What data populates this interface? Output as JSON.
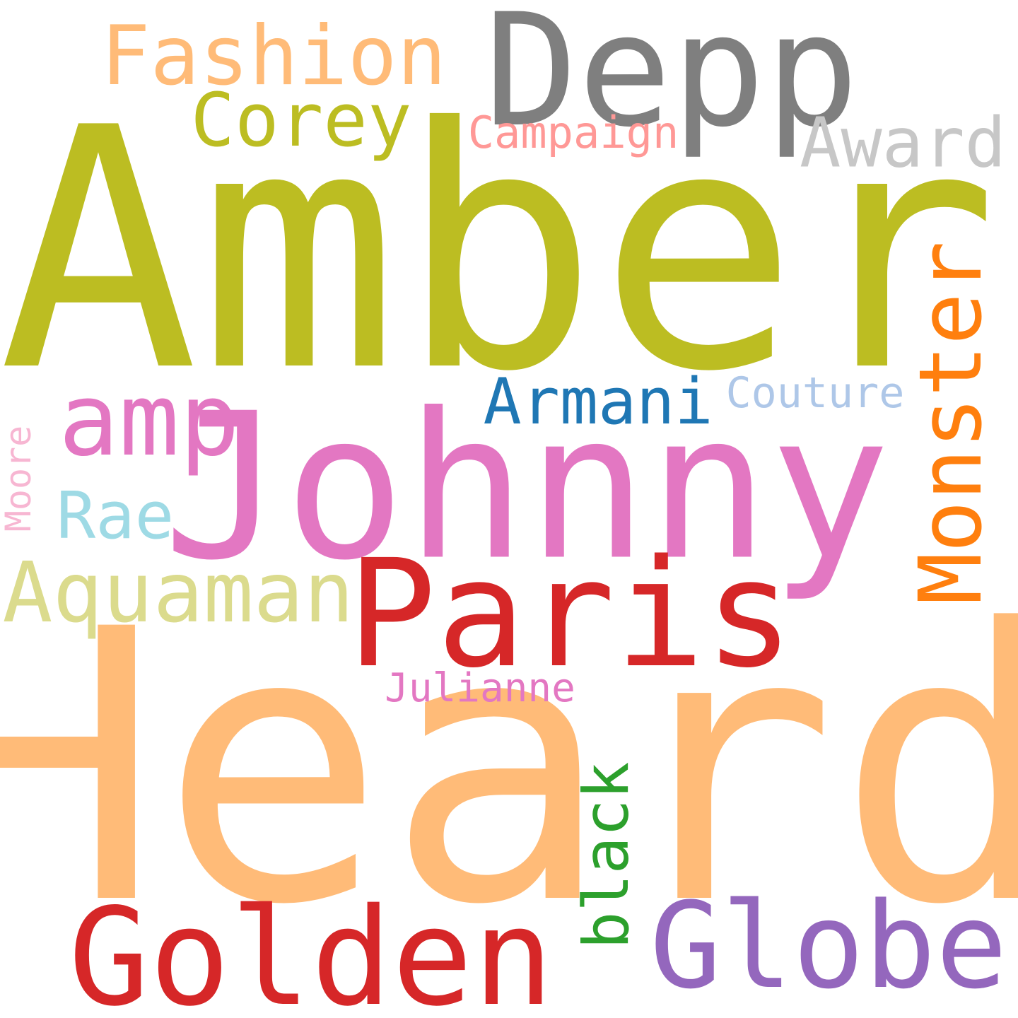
{
  "cloud": {
    "words": [
      {
        "text": "Amber",
        "color": "#bcbd22"
      },
      {
        "text": "Heard",
        "color": "#ffbb78"
      },
      {
        "text": "Johnny",
        "color": "#e377c2"
      },
      {
        "text": "Depp",
        "color": "#7f7f7f"
      },
      {
        "text": "Paris",
        "color": "#d62728"
      },
      {
        "text": "Golden",
        "color": "#d62728"
      },
      {
        "text": "Globe",
        "color": "#9467bd"
      },
      {
        "text": "Monster",
        "color": "#ff7f0e"
      },
      {
        "text": "Fashion",
        "color": "#ffbb78"
      },
      {
        "text": "amp",
        "color": "#e377c2"
      },
      {
        "text": "Aquaman",
        "color": "#dbdb8d"
      },
      {
        "text": "Corey",
        "color": "#bcbd22"
      },
      {
        "text": "Award",
        "color": "#c7c7c7"
      },
      {
        "text": "Armani",
        "color": "#1f77b4"
      },
      {
        "text": "black",
        "color": "#2ca02c"
      },
      {
        "text": "Rae",
        "color": "#9edae5"
      },
      {
        "text": "Campaign",
        "color": "#ff9896"
      },
      {
        "text": "Couture",
        "color": "#aec7e8"
      },
      {
        "text": "Julianne",
        "color": "#e377c2"
      },
      {
        "text": "Moore",
        "color": "#f7b6d2"
      }
    ]
  }
}
